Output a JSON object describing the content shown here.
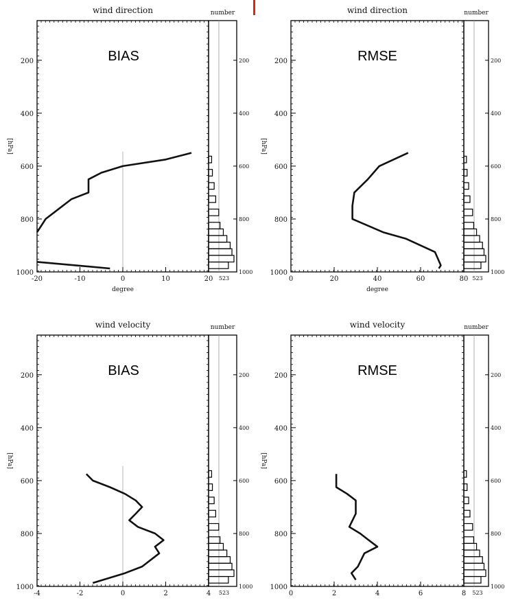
{
  "accent_mark_color": "#e8220f",
  "chart_data": [
    {
      "type": "line",
      "title": "wind direction",
      "label": "BIAS",
      "xlabel": "degree",
      "ylabel": "[hPa]",
      "hist_title": "number",
      "hist_count": "523",
      "xlim": [
        -20,
        20
      ],
      "ylim": [
        1000,
        50
      ],
      "xticks": [
        "-20",
        "-10",
        "0",
        "10",
        "20"
      ],
      "yticks": [
        "200",
        "400",
        "600",
        "800",
        "1000"
      ],
      "hist_yticks": [
        "200",
        "400",
        "600",
        "800",
        "1000"
      ],
      "series": [
        {
          "points": [
            [
              16,
              550
            ],
            [
              10,
              575
            ],
            [
              0,
              600
            ],
            [
              -5,
              625
            ],
            [
              -8,
              650
            ],
            [
              -8,
              700
            ],
            [
              -12,
              725
            ],
            [
              -16,
              775
            ],
            [
              -18,
              800
            ],
            [
              -19,
              825
            ],
            [
              -20,
              850
            ]
          ]
        },
        {
          "points": [
            [
              -20,
              962
            ],
            [
              -3,
              987
            ]
          ]
        }
      ],
      "hist": [
        [
          575,
          0.12
        ],
        [
          625,
          0.15
        ],
        [
          675,
          0.22
        ],
        [
          725,
          0.28
        ],
        [
          775,
          0.4
        ],
        [
          825,
          0.45
        ],
        [
          850,
          0.58
        ],
        [
          875,
          0.72
        ],
        [
          900,
          0.85
        ],
        [
          925,
          0.92
        ],
        [
          950,
          1.0
        ],
        [
          975,
          0.78
        ]
      ]
    },
    {
      "type": "line",
      "title": "wind direction",
      "label": "RMSE",
      "xlabel": "degree",
      "ylabel": "[hPa]",
      "hist_title": "number",
      "hist_count": "523",
      "xlim": [
        0,
        90
      ],
      "ylim": [
        1000,
        50
      ],
      "xticks": [
        "0",
        "20",
        "40",
        "60",
        "80"
      ],
      "yticks": [
        "200",
        "400",
        "600",
        "800",
        "1000"
      ],
      "hist_yticks": [
        "200",
        "400",
        "600",
        "800",
        "1000"
      ],
      "series": [
        {
          "points": [
            [
              61,
              550
            ],
            [
              46,
              600
            ],
            [
              40,
              650
            ],
            [
              33,
              700
            ],
            [
              32,
              750
            ],
            [
              32,
              800
            ],
            [
              48,
              850
            ],
            [
              60,
              875
            ],
            [
              75,
              925
            ],
            [
              78,
              975
            ],
            [
              77,
              987
            ]
          ]
        }
      ],
      "hist": [
        [
          575,
          0.12
        ],
        [
          625,
          0.15
        ],
        [
          675,
          0.22
        ],
        [
          725,
          0.28
        ],
        [
          775,
          0.4
        ],
        [
          825,
          0.45
        ],
        [
          850,
          0.58
        ],
        [
          875,
          0.72
        ],
        [
          900,
          0.85
        ],
        [
          925,
          0.92
        ],
        [
          950,
          1.0
        ],
        [
          975,
          0.78
        ]
      ]
    },
    {
      "type": "line",
      "title": "wind velocity",
      "label": "BIAS",
      "xlabel": "",
      "ylabel": "[hPa]",
      "hist_title": "number",
      "hist_count": "523",
      "xlim": [
        -4,
        4
      ],
      "ylim": [
        1000,
        50
      ],
      "xticks": [
        "-4",
        "-2",
        "0",
        "2",
        "4"
      ],
      "yticks": [
        "200",
        "400",
        "600",
        "800",
        "1000"
      ],
      "hist_yticks": [
        "200",
        "400",
        "600",
        "800",
        "1000"
      ],
      "series": [
        {
          "points": [
            [
              -1.7,
              575
            ],
            [
              -1.4,
              600
            ],
            [
              -0.6,
              625
            ],
            [
              0.1,
              650
            ],
            [
              0.6,
              675
            ],
            [
              0.9,
              700
            ],
            [
              0.6,
              725
            ],
            [
              0.3,
              750
            ],
            [
              0.7,
              775
            ],
            [
              1.5,
              800
            ],
            [
              1.9,
              825
            ],
            [
              1.5,
              850
            ],
            [
              1.7,
              875
            ],
            [
              0.9,
              925
            ],
            [
              0.1,
              950
            ],
            [
              -1.4,
              987
            ]
          ]
        }
      ],
      "hist": [
        [
          575,
          0.12
        ],
        [
          625,
          0.15
        ],
        [
          675,
          0.22
        ],
        [
          725,
          0.28
        ],
        [
          775,
          0.4
        ],
        [
          825,
          0.45
        ],
        [
          850,
          0.58
        ],
        [
          875,
          0.72
        ],
        [
          900,
          0.85
        ],
        [
          925,
          0.92
        ],
        [
          950,
          1.0
        ],
        [
          975,
          0.78
        ]
      ]
    },
    {
      "type": "line",
      "title": "wind velocity",
      "label": "RMSE",
      "xlabel": "",
      "ylabel": "[hPa]",
      "hist_title": "number",
      "hist_count": "523",
      "xlim": [
        0,
        8
      ],
      "ylim": [
        1000,
        50
      ],
      "xticks": [
        "0",
        "2",
        "4",
        "6",
        "8"
      ],
      "yticks": [
        "200",
        "400",
        "600",
        "800",
        "1000"
      ],
      "hist_yticks": [
        "200",
        "400",
        "600",
        "800",
        "1000"
      ],
      "series": [
        {
          "points": [
            [
              2.1,
              575
            ],
            [
              2.1,
              625
            ],
            [
              2.6,
              650
            ],
            [
              3.0,
              675
            ],
            [
              3.0,
              725
            ],
            [
              2.7,
              775
            ],
            [
              3.2,
              800
            ],
            [
              3.6,
              825
            ],
            [
              4.0,
              850
            ],
            [
              3.4,
              875
            ],
            [
              3.1,
              925
            ],
            [
              2.8,
              950
            ],
            [
              3.0,
              975
            ]
          ]
        }
      ],
      "hist": [
        [
          575,
          0.12
        ],
        [
          625,
          0.15
        ],
        [
          675,
          0.22
        ],
        [
          725,
          0.28
        ],
        [
          775,
          0.4
        ],
        [
          825,
          0.45
        ],
        [
          850,
          0.58
        ],
        [
          875,
          0.72
        ],
        [
          900,
          0.85
        ],
        [
          925,
          0.92
        ],
        [
          950,
          1.0
        ],
        [
          975,
          0.78
        ]
      ]
    }
  ]
}
